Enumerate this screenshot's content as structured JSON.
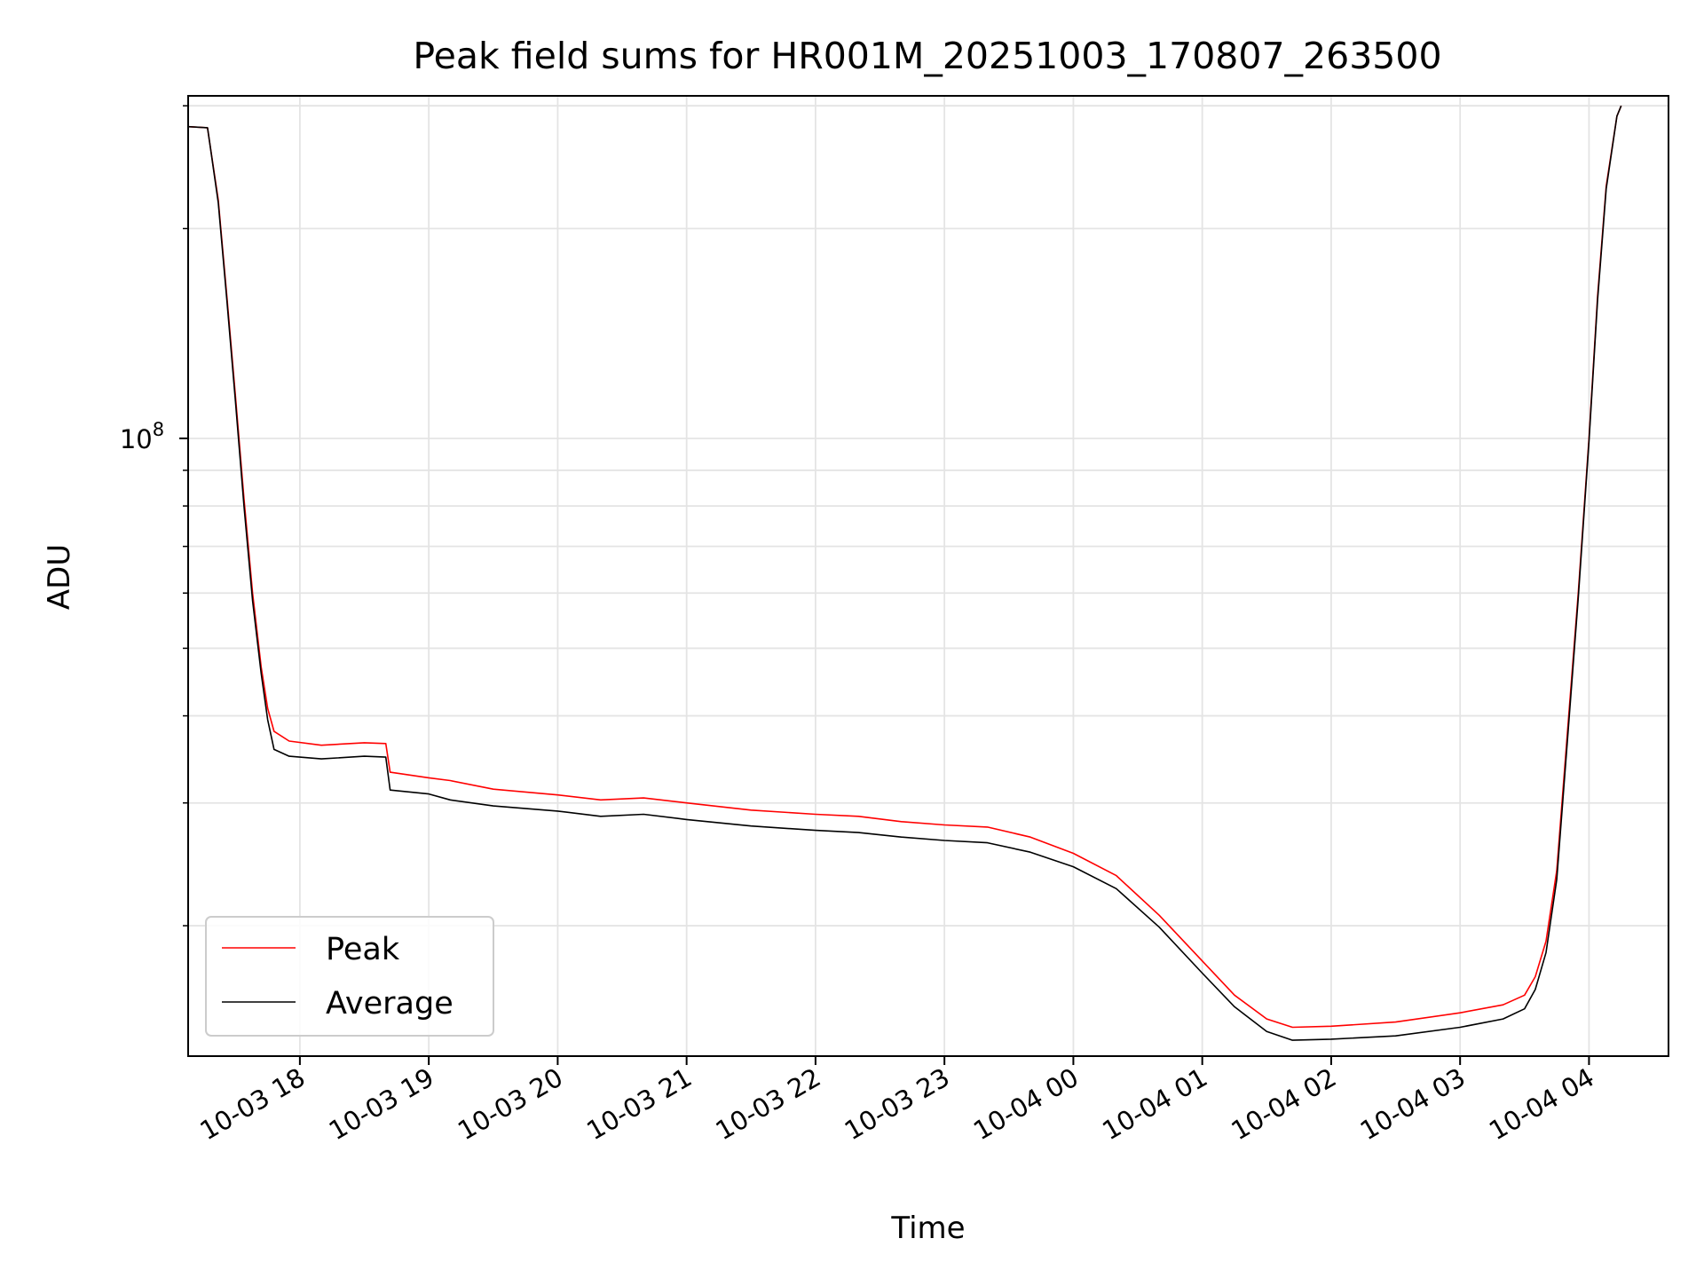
{
  "chart_data": {
    "type": "line",
    "title": "Peak field sums for HR001M_20251003_170807_263500",
    "xlabel": "Time",
    "ylabel": "ADU",
    "y_scale": "log",
    "ylim": [
      13000000,
      310000000
    ],
    "x_range": [
      "2025-10-03 17:08",
      "2025-10-04 04:37"
    ],
    "x_ticks": [
      "10-03 18",
      "10-03 19",
      "10-03 20",
      "10-03 21",
      "10-03 22",
      "10-03 23",
      "10-04 00",
      "10-04 01",
      "10-04 02",
      "10-04 03",
      "10-04 04"
    ],
    "y_ticks": [
      {
        "value": 100000000,
        "base": "10",
        "exponent": "8"
      }
    ],
    "grid": true,
    "legend_position": "lower-left",
    "series": [
      {
        "name": "Peak",
        "color": "#ff0000",
        "points": [
          [
            "2025-10-03 17:08",
            280000000
          ],
          [
            "2025-10-03 17:17",
            279000000
          ],
          [
            "2025-10-03 17:18",
            266000000
          ],
          [
            "2025-10-03 17:22",
            220000000
          ],
          [
            "2025-10-03 17:26",
            160000000
          ],
          [
            "2025-10-03 17:30",
            115000000
          ],
          [
            "2025-10-03 17:34",
            82000000
          ],
          [
            "2025-10-03 17:38",
            60000000
          ],
          [
            "2025-10-03 17:42",
            47000000
          ],
          [
            "2025-10-03 17:45",
            41000000
          ],
          [
            "2025-10-03 17:48",
            38000000
          ],
          [
            "2025-10-03 17:55",
            36800000
          ],
          [
            "2025-10-03 18:10",
            36300000
          ],
          [
            "2025-10-03 18:30",
            36600000
          ],
          [
            "2025-10-03 18:40",
            36500000
          ],
          [
            "2025-10-03 18:42",
            33200000
          ],
          [
            "2025-10-03 19:00",
            32600000
          ],
          [
            "2025-10-03 19:10",
            32300000
          ],
          [
            "2025-10-03 19:30",
            31400000
          ],
          [
            "2025-10-03 20:00",
            30800000
          ],
          [
            "2025-10-03 20:20",
            30300000
          ],
          [
            "2025-10-03 20:40",
            30500000
          ],
          [
            "2025-10-03 21:00",
            30000000
          ],
          [
            "2025-10-03 21:30",
            29300000
          ],
          [
            "2025-10-03 22:00",
            28900000
          ],
          [
            "2025-10-03 22:20",
            28700000
          ],
          [
            "2025-10-03 22:40",
            28200000
          ],
          [
            "2025-10-03 23:00",
            27900000
          ],
          [
            "2025-10-03 23:20",
            27700000
          ],
          [
            "2025-10-03 23:40",
            26800000
          ],
          [
            "2025-10-04 00:00",
            25400000
          ],
          [
            "2025-10-04 00:20",
            23600000
          ],
          [
            "2025-10-04 00:40",
            20700000
          ],
          [
            "2025-10-04 01:00",
            17800000
          ],
          [
            "2025-10-04 01:15",
            15900000
          ],
          [
            "2025-10-04 01:30",
            14700000
          ],
          [
            "2025-10-04 01:42",
            14300000
          ],
          [
            "2025-10-04 02:00",
            14350000
          ],
          [
            "2025-10-04 02:30",
            14550000
          ],
          [
            "2025-10-04 03:00",
            15000000
          ],
          [
            "2025-10-04 03:20",
            15400000
          ],
          [
            "2025-10-04 03:30",
            15900000
          ],
          [
            "2025-10-04 03:35",
            16900000
          ],
          [
            "2025-10-04 03:40",
            19000000
          ],
          [
            "2025-10-04 03:45",
            24000000
          ],
          [
            "2025-10-04 03:50",
            38000000
          ],
          [
            "2025-10-04 03:55",
            60000000
          ],
          [
            "2025-10-04 04:00",
            100000000
          ],
          [
            "2025-10-04 04:04",
            160000000
          ],
          [
            "2025-10-04 04:08",
            230000000
          ],
          [
            "2025-10-04 04:13",
            290000000
          ],
          [
            "2025-10-04 04:15",
            300000000
          ]
        ]
      },
      {
        "name": "Average",
        "color": "#000000",
        "points": [
          [
            "2025-10-03 17:08",
            280000000
          ],
          [
            "2025-10-03 17:17",
            279000000
          ],
          [
            "2025-10-03 17:18",
            266000000
          ],
          [
            "2025-10-03 17:22",
            218000000
          ],
          [
            "2025-10-03 17:26",
            158000000
          ],
          [
            "2025-10-03 17:30",
            113000000
          ],
          [
            "2025-10-03 17:34",
            80000000
          ],
          [
            "2025-10-03 17:38",
            58500000
          ],
          [
            "2025-10-03 17:42",
            46000000
          ],
          [
            "2025-10-03 17:45",
            39500000
          ],
          [
            "2025-10-03 17:48",
            35800000
          ],
          [
            "2025-10-03 17:55",
            35000000
          ],
          [
            "2025-10-03 18:10",
            34700000
          ],
          [
            "2025-10-03 18:30",
            35000000
          ],
          [
            "2025-10-03 18:40",
            34900000
          ],
          [
            "2025-10-03 18:42",
            31300000
          ],
          [
            "2025-10-03 19:00",
            30900000
          ],
          [
            "2025-10-03 19:10",
            30300000
          ],
          [
            "2025-10-03 19:30",
            29700000
          ],
          [
            "2025-10-03 20:00",
            29200000
          ],
          [
            "2025-10-03 20:20",
            28700000
          ],
          [
            "2025-10-03 20:40",
            28900000
          ],
          [
            "2025-10-03 21:00",
            28400000
          ],
          [
            "2025-10-03 21:30",
            27800000
          ],
          [
            "2025-10-03 22:00",
            27400000
          ],
          [
            "2025-10-03 22:20",
            27200000
          ],
          [
            "2025-10-03 22:40",
            26800000
          ],
          [
            "2025-10-03 23:00",
            26500000
          ],
          [
            "2025-10-03 23:20",
            26300000
          ],
          [
            "2025-10-03 23:40",
            25500000
          ],
          [
            "2025-10-04 00:00",
            24300000
          ],
          [
            "2025-10-04 00:20",
            22600000
          ],
          [
            "2025-10-04 00:40",
            19900000
          ],
          [
            "2025-10-04 01:00",
            17100000
          ],
          [
            "2025-10-04 01:15",
            15300000
          ],
          [
            "2025-10-04 01:30",
            14100000
          ],
          [
            "2025-10-04 01:42",
            13700000
          ],
          [
            "2025-10-04 02:00",
            13750000
          ],
          [
            "2025-10-04 02:30",
            13900000
          ],
          [
            "2025-10-04 03:00",
            14300000
          ],
          [
            "2025-10-04 03:20",
            14700000
          ],
          [
            "2025-10-04 03:30",
            15200000
          ],
          [
            "2025-10-04 03:35",
            16200000
          ],
          [
            "2025-10-04 03:40",
            18300000
          ],
          [
            "2025-10-04 03:45",
            23300000
          ],
          [
            "2025-10-04 03:50",
            37000000
          ],
          [
            "2025-10-04 03:55",
            59000000
          ],
          [
            "2025-10-04 04:00",
            99000000
          ],
          [
            "2025-10-04 04:04",
            158000000
          ],
          [
            "2025-10-04 04:08",
            228000000
          ],
          [
            "2025-10-04 04:13",
            290000000
          ],
          [
            "2025-10-04 04:15",
            300000000
          ]
        ]
      }
    ]
  }
}
